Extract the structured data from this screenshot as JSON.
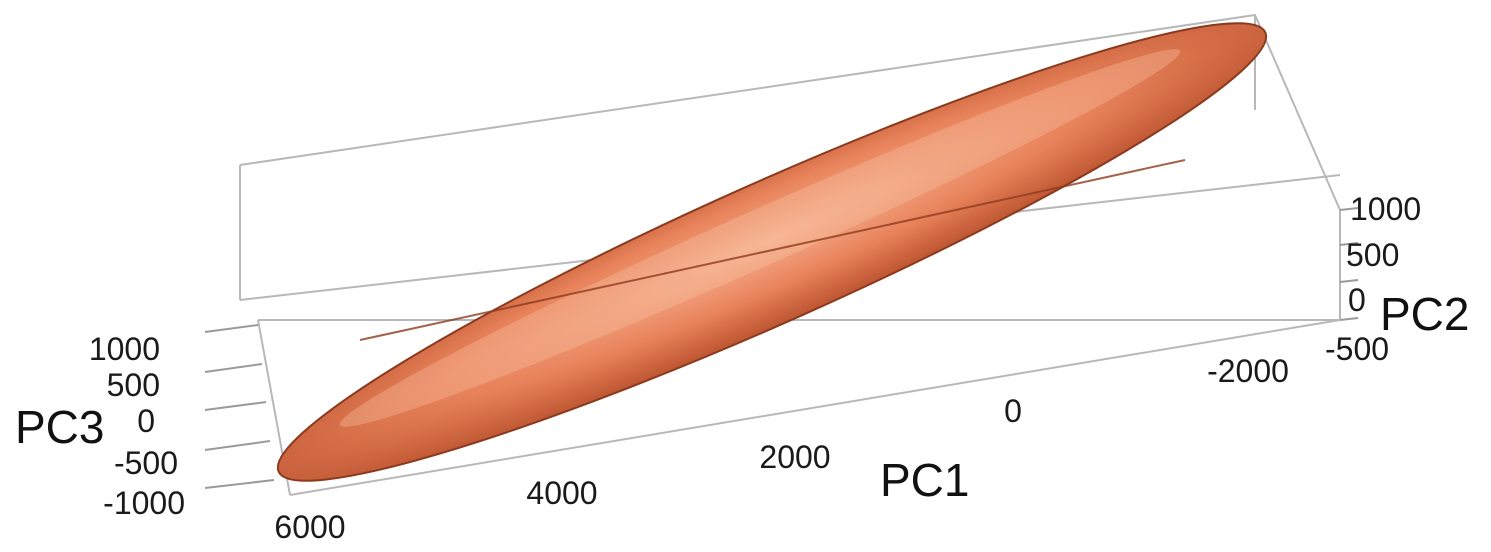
{
  "chart_data": {
    "type": "3d-ellipsoid",
    "axes": {
      "x": {
        "label": "PC1",
        "ticks": [
          6000,
          4000,
          2000,
          0,
          -2000
        ]
      },
      "y": {
        "label": "PC2",
        "ticks": [
          1000,
          500,
          0,
          -500
        ]
      },
      "z": {
        "label": "PC3",
        "ticks": [
          1000,
          500,
          0,
          -500,
          -1000
        ]
      }
    },
    "ellipsoid": {
      "description_color": "#e07a52",
      "major_axis_extent_pc1": [
        6000,
        -2200
      ]
    },
    "grid": false,
    "legend": "none"
  },
  "colors": {
    "surface_light": "#f6b08e",
    "surface_mid": "#e8825a",
    "surface_dark": "#b9522e",
    "box": "#b8b8b8"
  }
}
